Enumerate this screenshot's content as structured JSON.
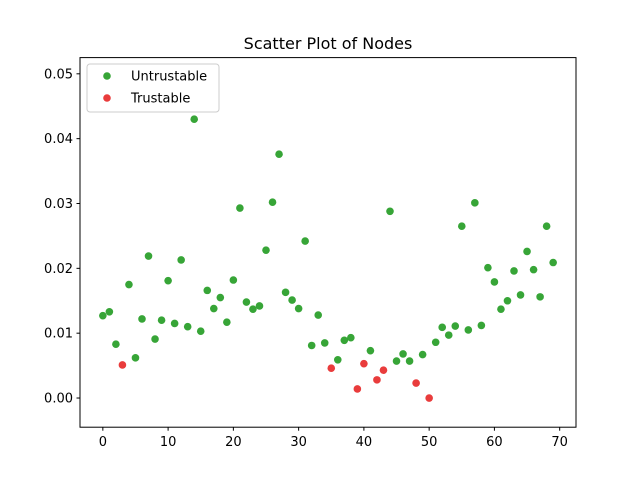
{
  "chart_data": {
    "type": "scatter",
    "title": "Scatter Plot of Nodes",
    "xlabel": "",
    "ylabel": "",
    "xlim": [
      -3.5,
      72.5
    ],
    "ylim": [
      -0.0045,
      0.0525
    ],
    "x_ticks": [
      0,
      10,
      20,
      30,
      40,
      50,
      60,
      70
    ],
    "y_ticks": [
      0.0,
      0.01,
      0.02,
      0.03,
      0.04,
      0.05
    ],
    "y_tick_labels": [
      "0.00",
      "0.01",
      "0.02",
      "0.03",
      "0.04",
      "0.05"
    ],
    "legend_position": "top-left",
    "series": [
      {
        "name": "Untrustable",
        "color": "#2ca02c",
        "points": [
          [
            0,
            0.0127
          ],
          [
            1,
            0.0133
          ],
          [
            2,
            0.0083
          ],
          [
            4,
            0.0175
          ],
          [
            5,
            0.0062
          ],
          [
            6,
            0.0122
          ],
          [
            7,
            0.0219
          ],
          [
            8,
            0.0091
          ],
          [
            9,
            0.012
          ],
          [
            10,
            0.0181
          ],
          [
            11,
            0.0115
          ],
          [
            12,
            0.0213
          ],
          [
            13,
            0.011
          ],
          [
            14,
            0.043
          ],
          [
            15,
            0.0103
          ],
          [
            16,
            0.0166
          ],
          [
            17,
            0.0138
          ],
          [
            18,
            0.0155
          ],
          [
            19,
            0.0117
          ],
          [
            20,
            0.0182
          ],
          [
            21,
            0.0293
          ],
          [
            22,
            0.0148
          ],
          [
            23,
            0.0137
          ],
          [
            24,
            0.0142
          ],
          [
            25,
            0.0228
          ],
          [
            26,
            0.0302
          ],
          [
            27,
            0.0376
          ],
          [
            28,
            0.0163
          ],
          [
            29,
            0.0151
          ],
          [
            30,
            0.0138
          ],
          [
            31,
            0.0242
          ],
          [
            32,
            0.0081
          ],
          [
            33,
            0.0128
          ],
          [
            34,
            0.0085
          ],
          [
            36,
            0.0059
          ],
          [
            37,
            0.0089
          ],
          [
            38,
            0.0093
          ],
          [
            41,
            0.0073
          ],
          [
            44,
            0.0288
          ],
          [
            45,
            0.0057
          ],
          [
            46,
            0.0068
          ],
          [
            47,
            0.0057
          ],
          [
            49,
            0.0067
          ],
          [
            51,
            0.0086
          ],
          [
            52,
            0.0109
          ],
          [
            53,
            0.0097
          ],
          [
            54,
            0.0111
          ],
          [
            55,
            0.0265
          ],
          [
            56,
            0.0105
          ],
          [
            57,
            0.0301
          ],
          [
            58,
            0.0112
          ],
          [
            59,
            0.0201
          ],
          [
            60,
            0.0179
          ],
          [
            61,
            0.0137
          ],
          [
            62,
            0.015
          ],
          [
            63,
            0.0196
          ],
          [
            64,
            0.0159
          ],
          [
            65,
            0.0226
          ],
          [
            66,
            0.0198
          ],
          [
            67,
            0.0156
          ],
          [
            68,
            0.0265
          ],
          [
            69,
            0.0209
          ]
        ]
      },
      {
        "name": "Trustable",
        "color": "#e83232",
        "points": [
          [
            3,
            0.0051
          ],
          [
            35,
            0.0046
          ],
          [
            39,
            0.0014
          ],
          [
            40,
            0.0053
          ],
          [
            42,
            0.0028
          ],
          [
            43,
            0.0043
          ],
          [
            48,
            0.0023
          ],
          [
            50,
            0.0
          ]
        ]
      }
    ]
  }
}
